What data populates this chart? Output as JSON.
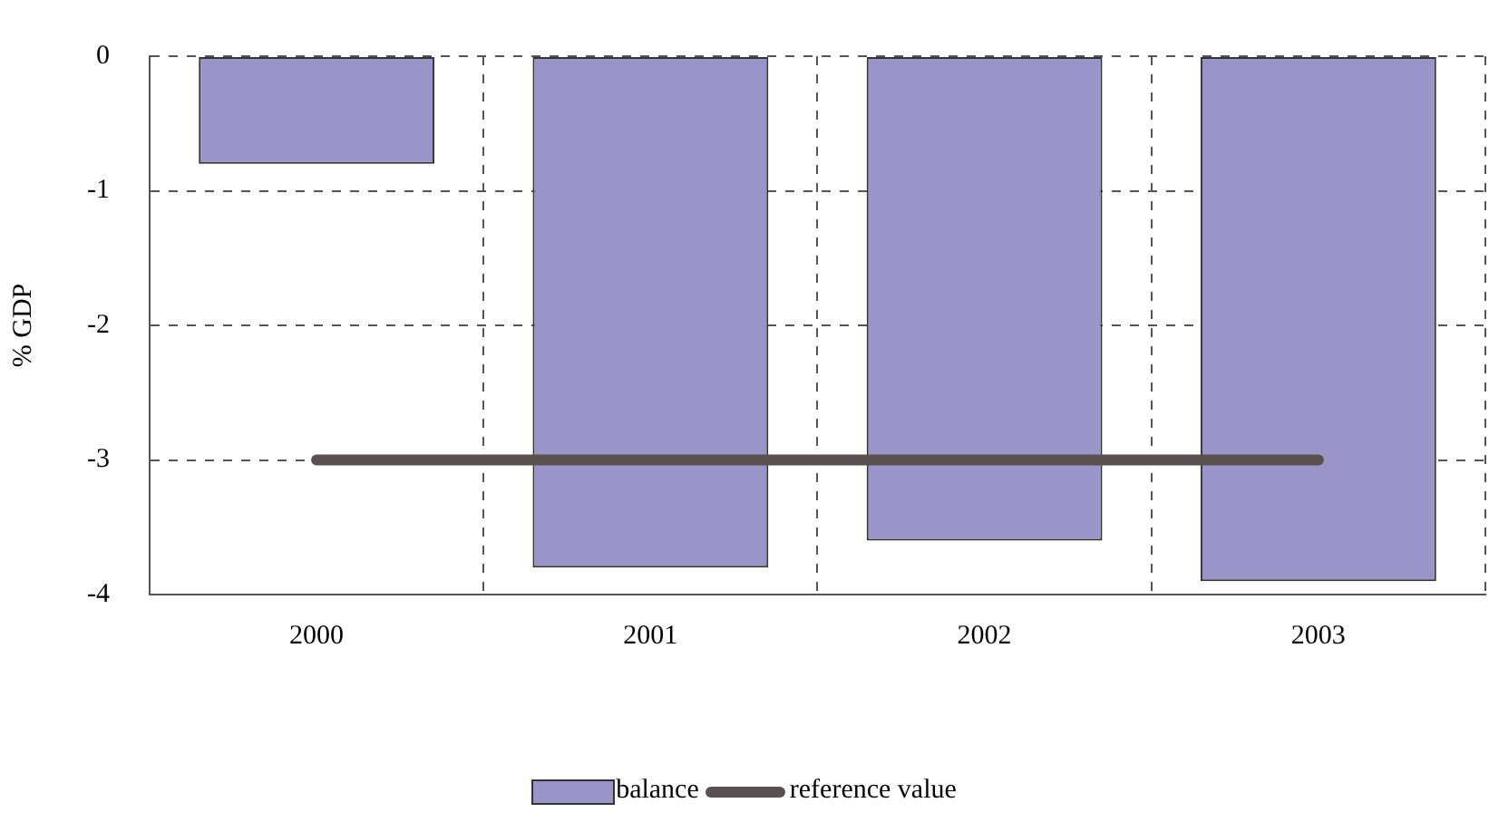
{
  "chart_data": {
    "type": "bar",
    "ylabel": "% GDP",
    "categories": [
      "2000",
      "2001",
      "2002",
      "2003"
    ],
    "series": [
      {
        "name": "balance",
        "color": "#9a94c8",
        "values": [
          -0.8,
          -3.8,
          -3.6,
          -3.9
        ]
      },
      {
        "name": "reference value",
        "type": "line",
        "color": "#595050",
        "values": [
          -3,
          -3,
          -3,
          -3
        ]
      }
    ],
    "ylim": [
      -4,
      0
    ],
    "yticks": [
      -4,
      -3,
      -2,
      -1,
      0
    ],
    "grid": true,
    "legend": "bottom",
    "marker": "none",
    "line_style": "solid"
  }
}
